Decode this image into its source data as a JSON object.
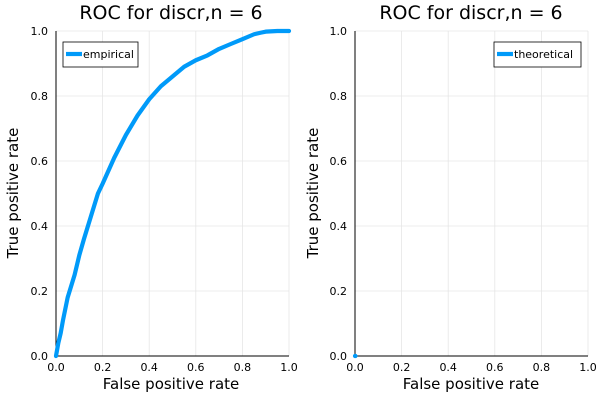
{
  "chart_data": [
    {
      "type": "line",
      "title": "ROC for discr,n = 6",
      "xlabel": "False positive rate",
      "ylabel": "True positive rate",
      "xlim": [
        0,
        1
      ],
      "ylim": [
        0,
        1
      ],
      "xticks": [
        "0.0",
        "0.2",
        "0.4",
        "0.6",
        "0.8",
        "1.0"
      ],
      "yticks": [
        "0.0",
        "0.2",
        "0.4",
        "0.6",
        "0.8",
        "1.0"
      ],
      "grid": true,
      "legend_position": "top-left",
      "series": [
        {
          "name": "empirical",
          "color": "#009af9",
          "x": [
            0.0,
            0.01,
            0.02,
            0.03,
            0.05,
            0.08,
            0.1,
            0.12,
            0.15,
            0.18,
            0.2,
            0.25,
            0.3,
            0.35,
            0.4,
            0.45,
            0.5,
            0.55,
            0.6,
            0.65,
            0.7,
            0.75,
            0.8,
            0.85,
            0.88,
            0.9,
            0.95,
            1.0
          ],
          "y": [
            0.0,
            0.04,
            0.07,
            0.11,
            0.18,
            0.25,
            0.31,
            0.36,
            0.43,
            0.5,
            0.53,
            0.61,
            0.68,
            0.74,
            0.79,
            0.83,
            0.86,
            0.89,
            0.91,
            0.925,
            0.945,
            0.96,
            0.975,
            0.99,
            0.995,
            0.998,
            1.0,
            1.0
          ]
        }
      ]
    },
    {
      "type": "line",
      "title": "ROC for discr,n = 6",
      "xlabel": "False positive rate",
      "ylabel": "True positive rate",
      "xlim": [
        0,
        1
      ],
      "ylim": [
        0,
        1
      ],
      "xticks": [
        "0.0",
        "0.2",
        "0.4",
        "0.6",
        "0.8",
        "1.0"
      ],
      "yticks": [
        "0.0",
        "0.2",
        "0.4",
        "0.6",
        "0.8",
        "1.0"
      ],
      "grid": true,
      "legend_position": "top-right",
      "series": [
        {
          "name": "theoretical",
          "color": "#009af9",
          "x": [
            0.0,
            0.002
          ],
          "y": [
            0.0,
            0.0
          ]
        }
      ]
    }
  ]
}
